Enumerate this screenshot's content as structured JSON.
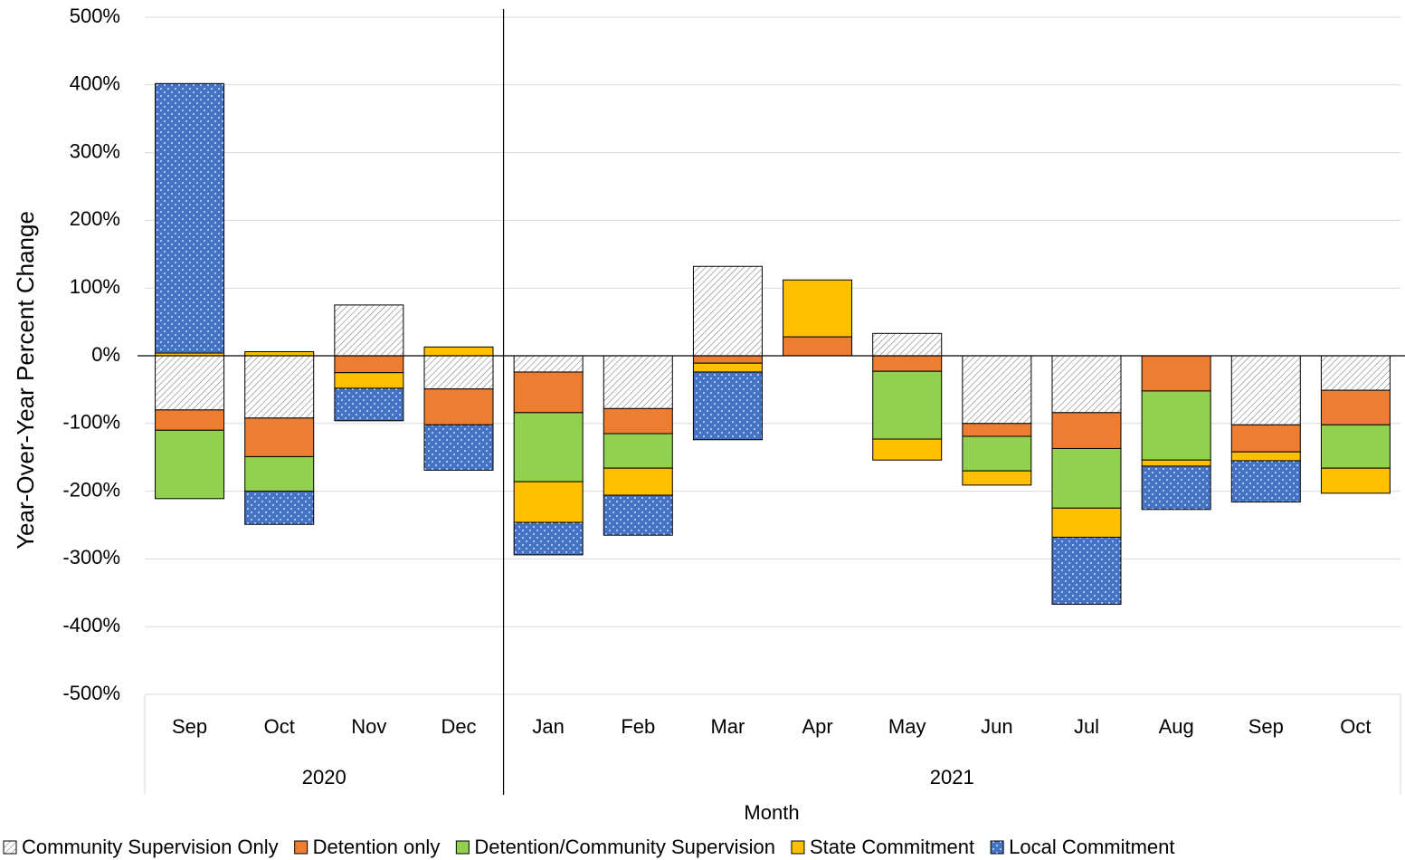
{
  "chart_data": {
    "type": "stacked-bar",
    "y_label": "Year-Over-Year Percent Change",
    "x_label": "Month",
    "groups": [
      {
        "label": "2020",
        "categories": [
          "Sep",
          "Oct",
          "Nov",
          "Dec"
        ]
      },
      {
        "label": "2021",
        "categories": [
          "Jan",
          "Feb",
          "Mar",
          "Apr",
          "May",
          "Jun",
          "Jul",
          "Aug",
          "Sep",
          "Oct"
        ]
      }
    ],
    "ylim": [
      -500,
      500
    ],
    "yticks": [
      {
        "value": -500,
        "label": "-500%"
      },
      {
        "value": -400,
        "label": "-400%"
      },
      {
        "value": -300,
        "label": "-300%"
      },
      {
        "value": -200,
        "label": "-200%"
      },
      {
        "value": -100,
        "label": "-100%"
      },
      {
        "value": 0,
        "label": "0%"
      },
      {
        "value": 100,
        "label": "100%"
      },
      {
        "value": 200,
        "label": "200%"
      },
      {
        "value": 300,
        "label": "300%"
      },
      {
        "value": 400,
        "label": "400%"
      },
      {
        "value": 500,
        "label": "500%"
      }
    ],
    "grid": true,
    "legend": "bottom",
    "series": [
      {
        "name": "Community Supervision Only",
        "color": "#ffffff",
        "pattern": "hatch",
        "values": [
          -80,
          -92,
          75,
          -49,
          -24,
          -78,
          132,
          0,
          33,
          -100,
          -84,
          0,
          -102,
          -51
        ]
      },
      {
        "name": "Detention only",
        "color": "#ed7d31",
        "values": [
          -30,
          -57,
          -25,
          -53,
          -60,
          -37,
          -11,
          28,
          -23,
          -19,
          -53,
          -52,
          -40,
          -51
        ]
      },
      {
        "name": "Detention/Community Supervision",
        "color": "#92d050",
        "values": [
          -101,
          -51,
          0,
          0,
          -102,
          -51,
          0,
          0,
          -100,
          -51,
          -88,
          -102,
          0,
          -64
        ]
      },
      {
        "name": "State Commitment",
        "color": "#ffc000",
        "values": [
          4,
          6,
          -23,
          13,
          -60,
          -40,
          -13,
          84,
          -31,
          -21,
          -43,
          -9,
          -13,
          -37
        ]
      },
      {
        "name": "Local Commitment",
        "color": "#4472c4",
        "pattern": "dots",
        "values": [
          398,
          -49,
          -48,
          -67,
          -48,
          -59,
          -100,
          0,
          0,
          0,
          -99,
          -64,
          -61,
          0
        ]
      }
    ]
  }
}
